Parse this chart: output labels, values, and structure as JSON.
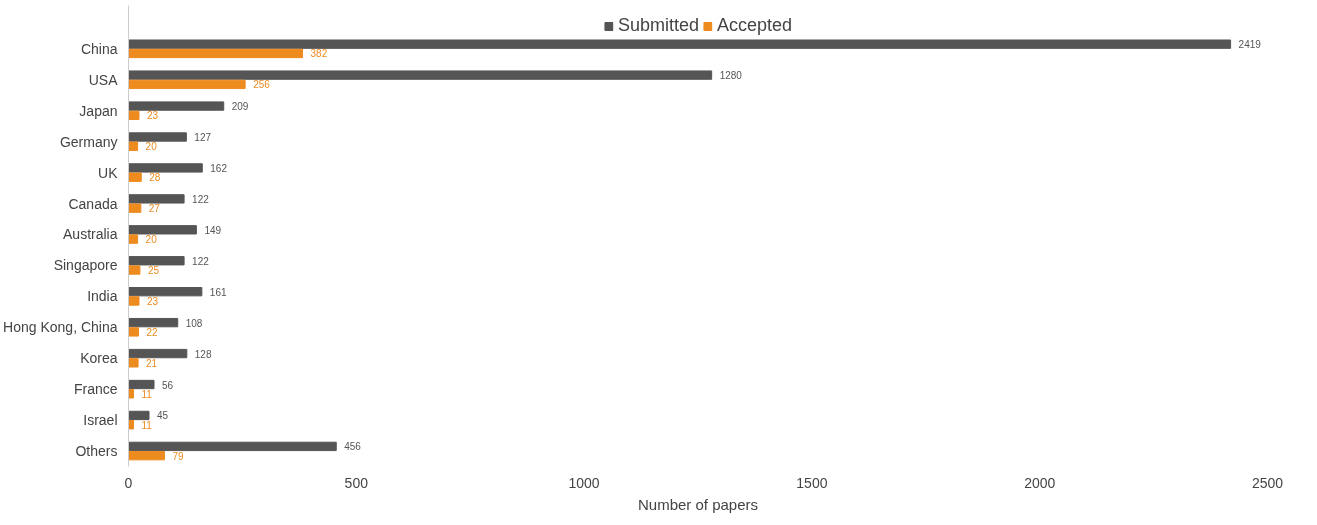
{
  "chart_data": {
    "type": "bar",
    "orientation": "horizontal",
    "xlabel": "Number of papers",
    "categories": [
      "China",
      "USA",
      "Japan",
      "Germany",
      "UK",
      "Canada",
      "Australia",
      "Singapore",
      "India",
      "Hong Kong, China",
      "Korea",
      "France",
      "Israel",
      "Others"
    ],
    "series": [
      {
        "name": "Submitted",
        "color": "#555555",
        "values": [
          2419,
          1280,
          209,
          127,
          162,
          122,
          149,
          122,
          161,
          108,
          128,
          56,
          45,
          456
        ]
      },
      {
        "name": "Accepted",
        "color": "#ed8b1f",
        "values": [
          382,
          256,
          23,
          20,
          28,
          27,
          20,
          25,
          23,
          22,
          21,
          11,
          11,
          79
        ]
      }
    ],
    "xlim": [
      0,
      2500
    ],
    "xticks": [
      0,
      500,
      1000,
      1500,
      2000,
      2500
    ],
    "grid": false,
    "legend": "top",
    "data_labels": true
  }
}
